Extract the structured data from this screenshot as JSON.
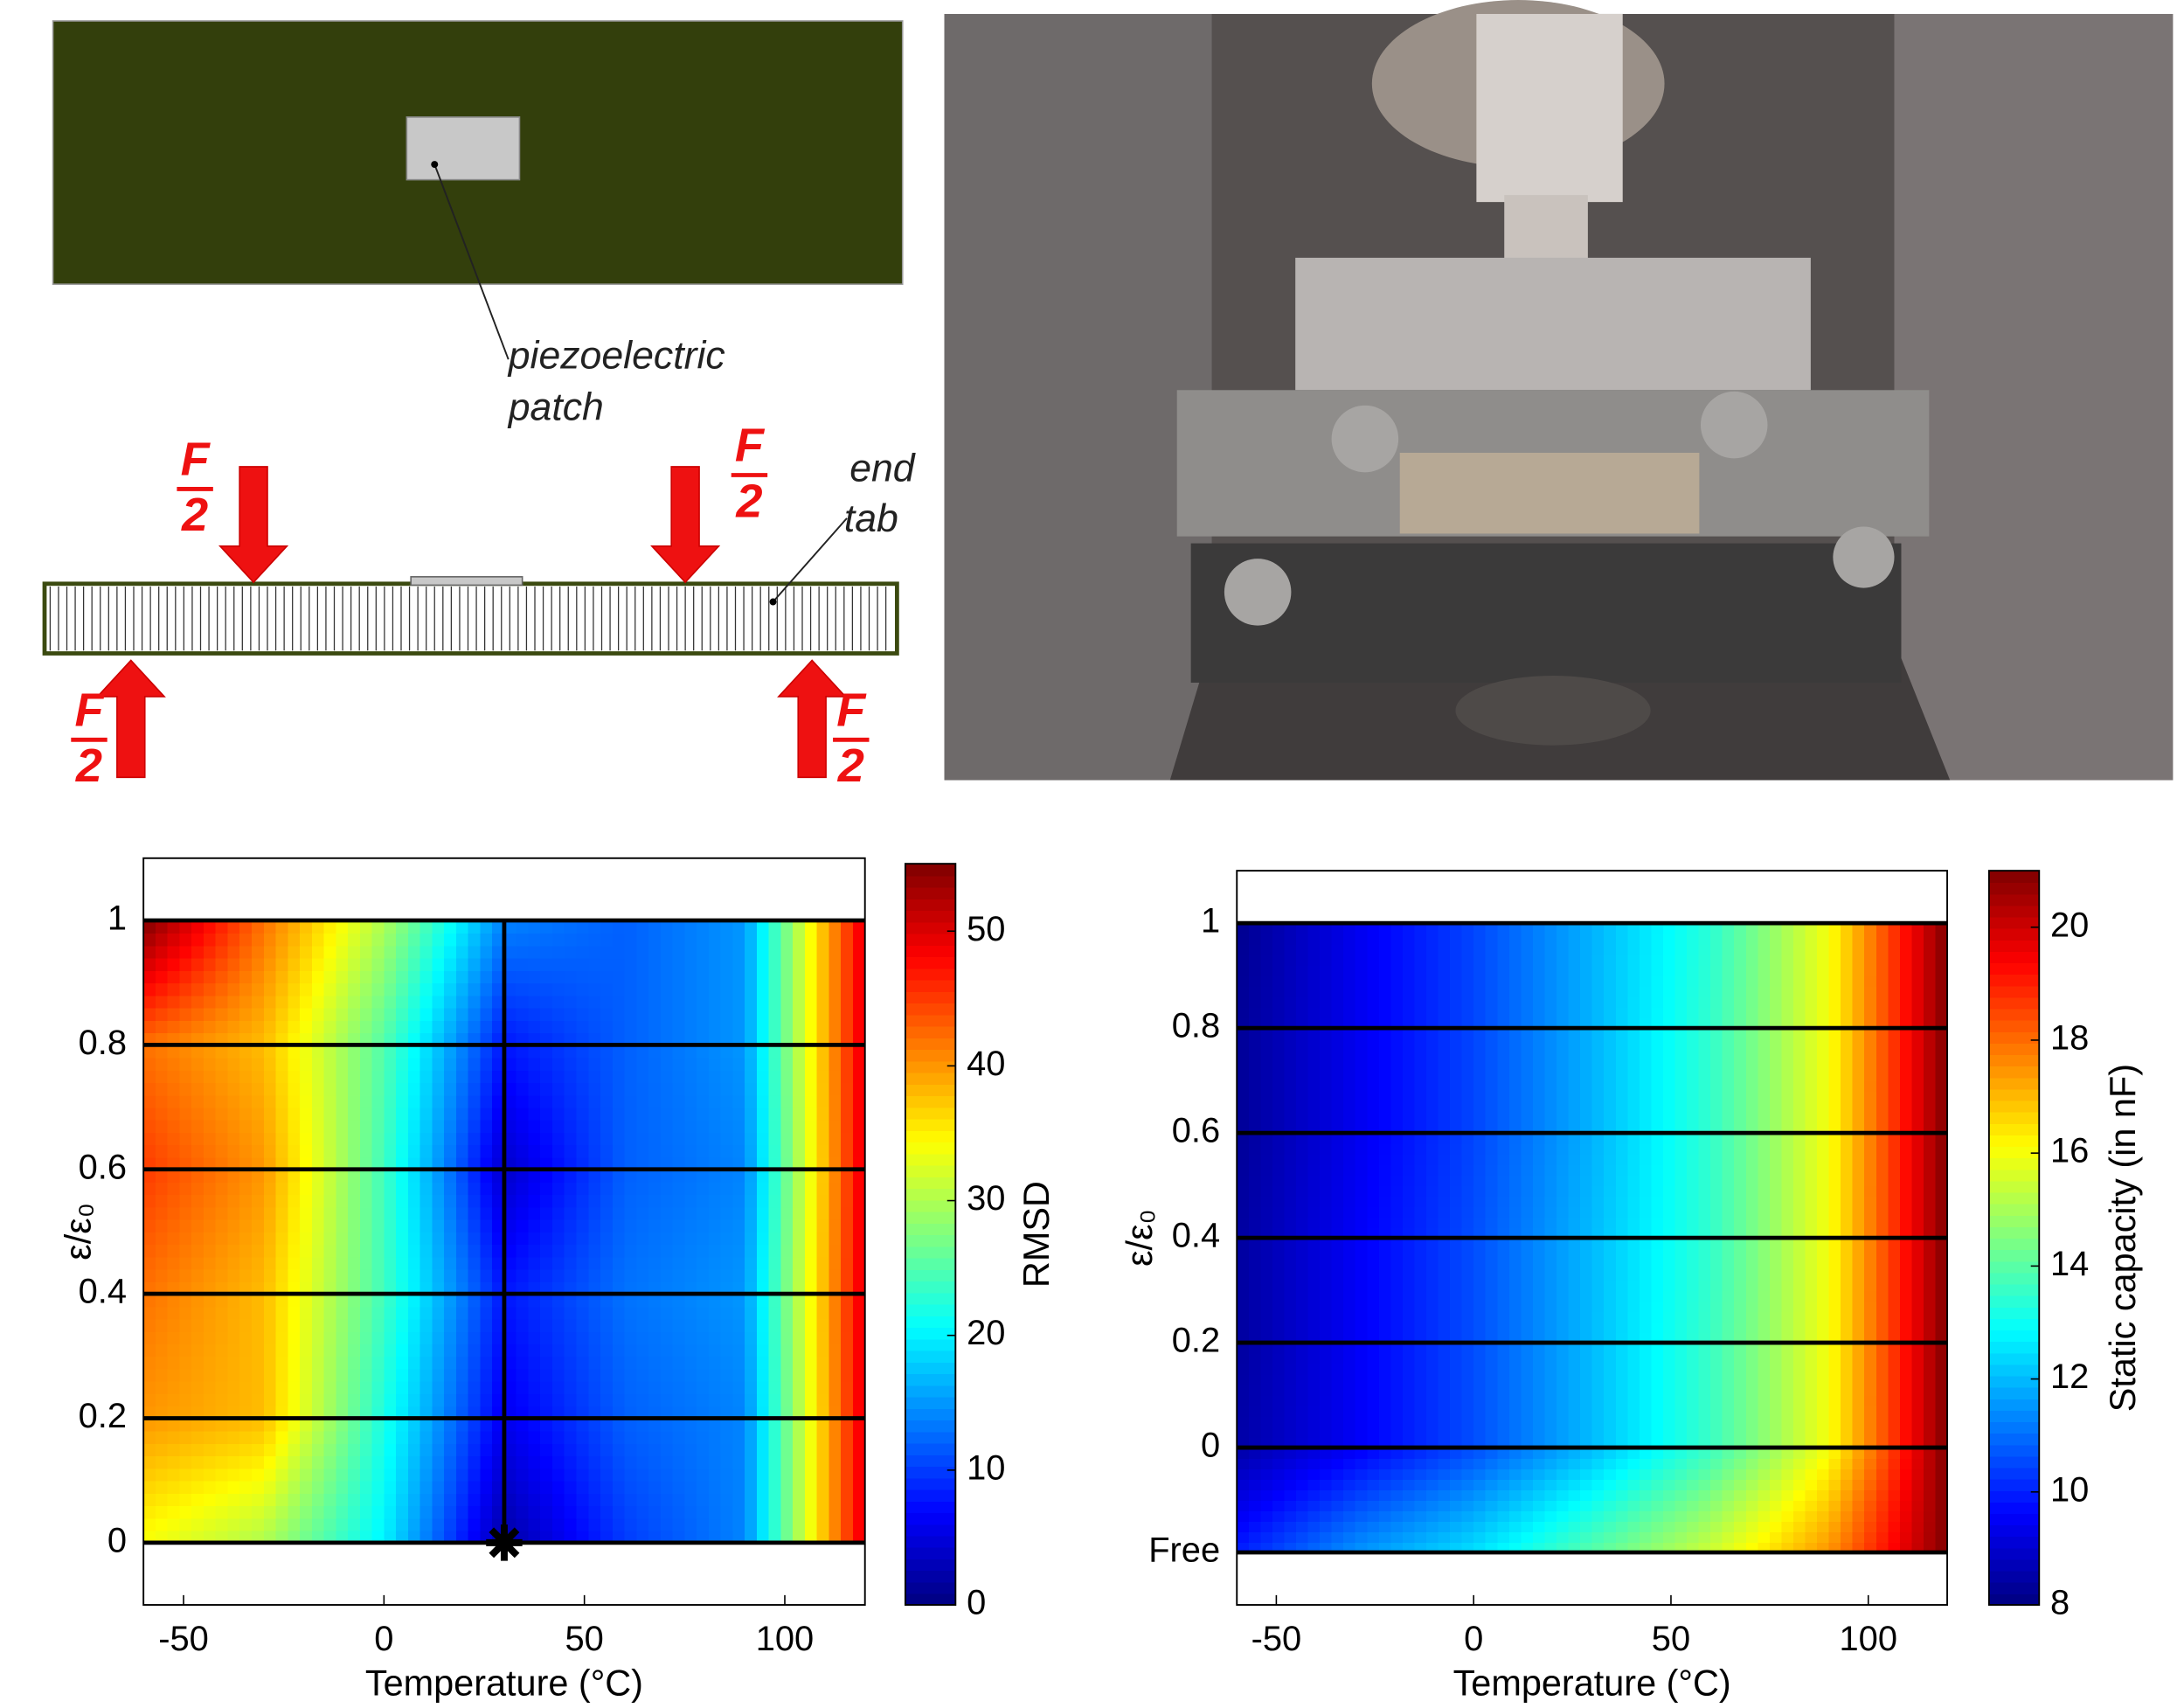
{
  "diagram": {
    "patch_label": [
      "piezoelectric",
      "patch"
    ],
    "end_tab_label": [
      "end",
      "tab"
    ],
    "force": {
      "numerator": "F",
      "denominator": "2"
    }
  },
  "chart_data": [
    {
      "type": "contour",
      "x": [
        -60,
        -30,
        0,
        30,
        60,
        90,
        120
      ],
      "y": [
        0,
        0.2,
        0.4,
        0.6,
        0.8,
        1
      ],
      "z": [
        [
          34,
          30,
          20,
          2,
          10,
          14,
          50
        ],
        [
          40,
          38,
          22,
          6,
          12,
          14,
          50
        ],
        [
          42,
          38,
          24,
          8,
          13,
          15,
          50
        ],
        [
          45,
          40,
          24,
          4,
          12,
          14,
          50
        ],
        [
          42,
          38,
          25,
          8,
          12,
          15,
          50
        ],
        [
          55,
          42,
          30,
          14,
          12,
          15,
          50
        ]
      ],
      "xlim": [
        -60,
        120
      ],
      "ylim": [
        -0.1,
        1.1
      ],
      "xticks": [
        -50,
        0,
        50,
        100
      ],
      "yticks": [
        0,
        0.2,
        0.4,
        0.6,
        0.8,
        1
      ],
      "xlabel": "Temperature (°C)",
      "ylabel": "ε/ε₀",
      "row_lines": true,
      "vline": 30,
      "marker": {
        "x": 30,
        "y": 0
      },
      "colorbar": {
        "label": "RMSD",
        "clim": [
          0,
          55
        ],
        "ticks": [
          0,
          10,
          20,
          30,
          40,
          50
        ]
      }
    },
    {
      "type": "contour",
      "x": [
        -60,
        -30,
        0,
        30,
        60,
        90,
        120
      ],
      "y": [
        -0.2,
        0,
        0.2,
        0.4,
        0.6,
        0.8,
        1
      ],
      "z": [
        [
          10,
          11.5,
          12.5,
          14,
          15.5,
          17.5,
          21
        ],
        [
          8.5,
          9.5,
          10.6,
          12,
          13.6,
          16,
          21
        ],
        [
          8.4,
          9.5,
          10.6,
          12,
          13.6,
          16,
          21
        ],
        [
          8.4,
          9.5,
          10.6,
          12,
          13.5,
          16,
          21
        ],
        [
          8.3,
          9.4,
          10.5,
          11.9,
          13.5,
          16,
          21
        ],
        [
          8.3,
          9.4,
          10.5,
          11.9,
          13.5,
          16,
          21
        ],
        [
          8.2,
          9.4,
          10.5,
          11.9,
          13.4,
          16,
          21
        ]
      ],
      "xlim": [
        -60,
        120
      ],
      "ylim": [
        -0.3,
        1.1
      ],
      "xticks": [
        -50,
        0,
        50,
        100
      ],
      "yticks": [
        {
          "value": -0.2,
          "label": "Free"
        },
        0,
        0.2,
        0.4,
        0.6,
        0.8,
        1
      ],
      "xlabel": "Temperature (°C)",
      "ylabel": "ε/ε₀",
      "row_lines": true,
      "colorbar": {
        "label": "Static capacity (in nF)",
        "clim": [
          8,
          21
        ],
        "ticks": [
          8,
          10,
          12,
          14,
          16,
          18,
          20
        ]
      }
    }
  ]
}
